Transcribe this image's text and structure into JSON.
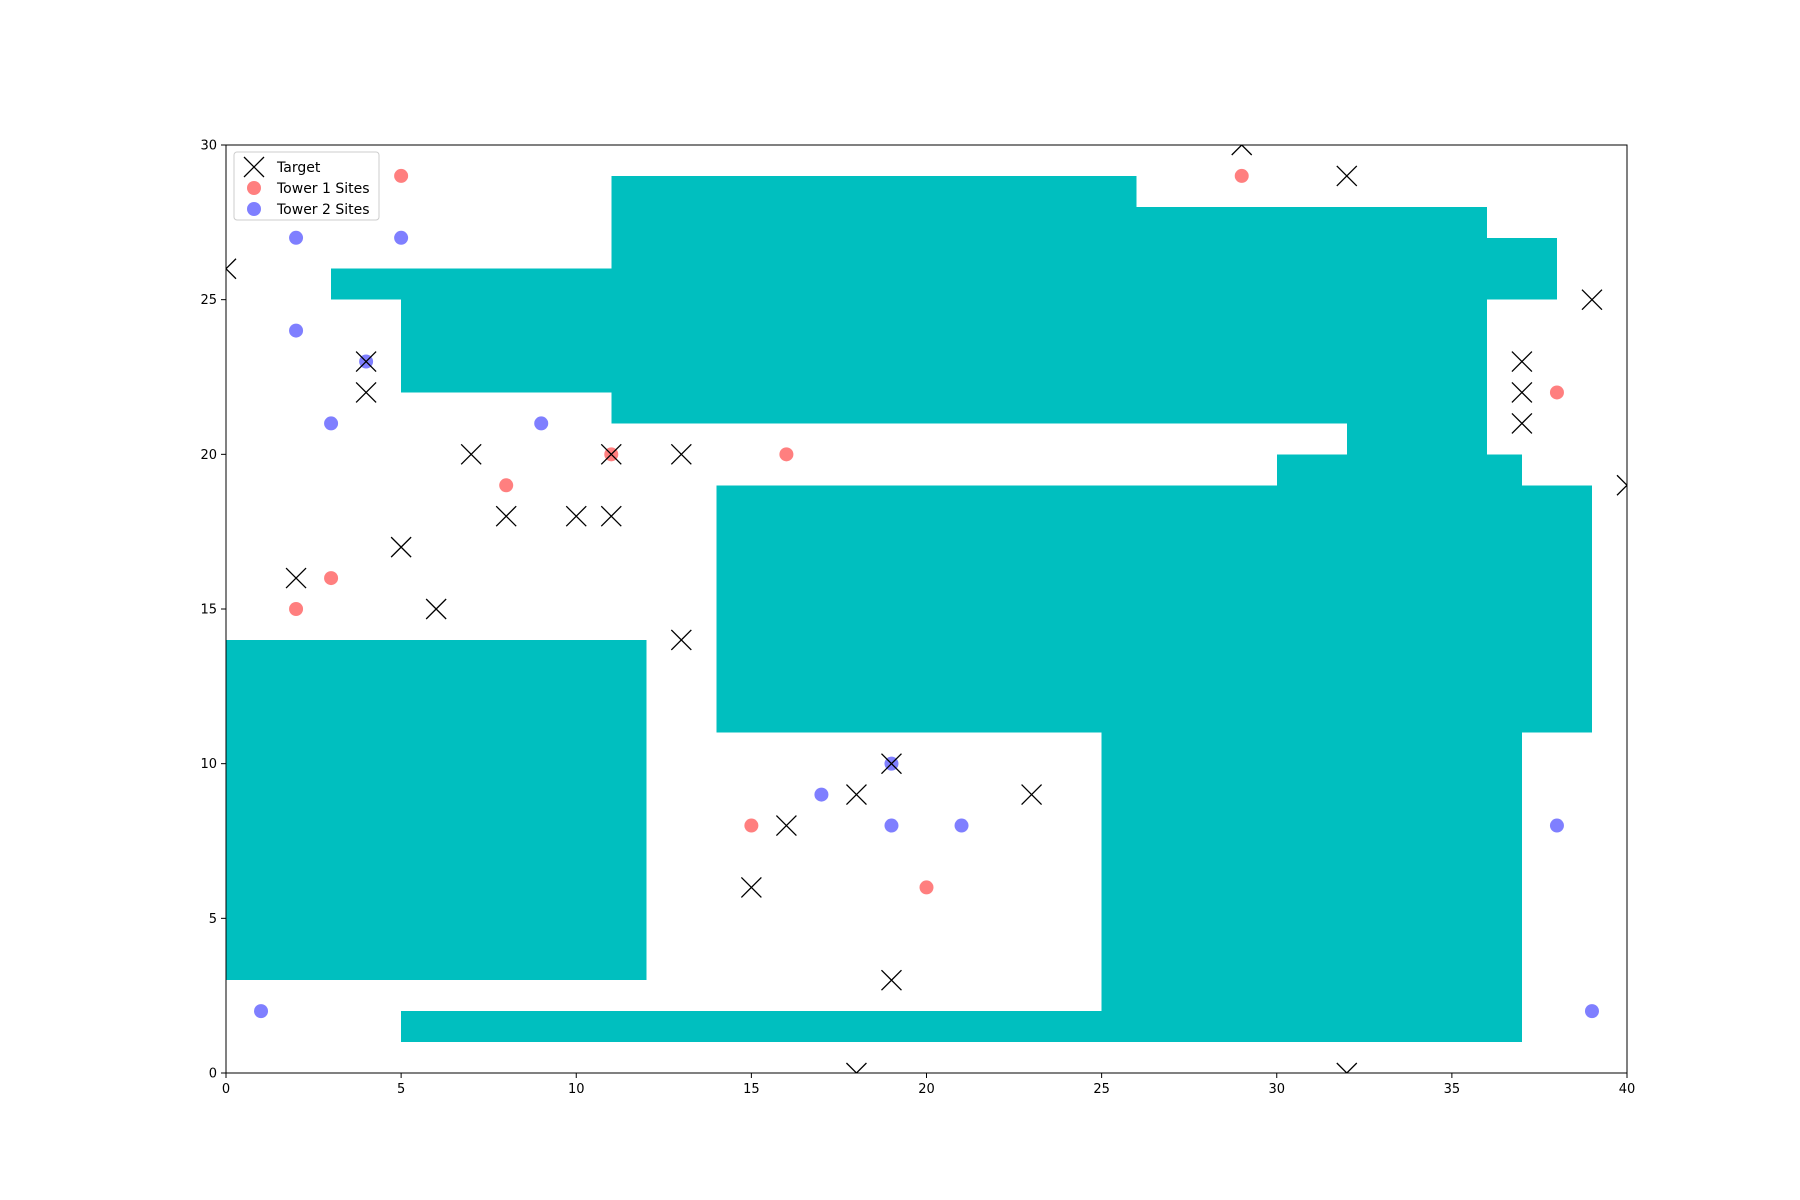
{
  "chart_data": {
    "type": "scatter",
    "title": "",
    "xlabel": "",
    "ylabel": "",
    "xlim": [
      0,
      40
    ],
    "ylim": [
      0,
      30
    ],
    "xticks": [
      "0",
      "5",
      "10",
      "15",
      "20",
      "25",
      "30",
      "35",
      "40"
    ],
    "yticks": [
      "0",
      "5",
      "10",
      "15",
      "20",
      "25",
      "30"
    ],
    "grid": false,
    "legend_position": "top-left",
    "obstacle_color": "#00bfbf",
    "obstacles": [
      {
        "x0": 11,
        "x1": 26,
        "y0": 21,
        "y1": 29
      },
      {
        "x0": 26,
        "x1": 36,
        "y0": 21,
        "y1": 28
      },
      {
        "x0": 36,
        "x1": 38,
        "y0": 25,
        "y1": 27
      },
      {
        "x0": 5,
        "x1": 11,
        "y0": 22,
        "y1": 25
      },
      {
        "x0": 3,
        "x1": 11,
        "y0": 25,
        "y1": 26
      },
      {
        "x0": 32,
        "x1": 36,
        "y0": 20,
        "y1": 21
      },
      {
        "x0": 30,
        "x1": 37,
        "y0": 19,
        "y1": 20
      },
      {
        "x0": 14,
        "x1": 39,
        "y0": 11,
        "y1": 19
      },
      {
        "x0": 25,
        "x1": 37,
        "y0": 1,
        "y1": 11
      },
      {
        "x0": 0,
        "x1": 12,
        "y0": 3,
        "y1": 14
      },
      {
        "x0": 5,
        "x1": 25,
        "y0": 1,
        "y1": 2
      }
    ],
    "series": [
      {
        "name": "Target",
        "marker": "x",
        "color": "#000000",
        "points": [
          [
            0,
            26
          ],
          [
            29,
            30
          ],
          [
            32,
            29
          ],
          [
            39,
            25
          ],
          [
            4,
            23
          ],
          [
            4,
            22
          ],
          [
            37,
            23
          ],
          [
            37,
            22
          ],
          [
            37,
            21
          ],
          [
            7,
            20
          ],
          [
            11,
            20
          ],
          [
            13,
            20
          ],
          [
            40,
            19
          ],
          [
            8,
            18
          ],
          [
            10,
            18
          ],
          [
            11,
            18
          ],
          [
            5,
            17
          ],
          [
            2,
            16
          ],
          [
            6,
            15
          ],
          [
            13,
            14
          ],
          [
            19,
            10
          ],
          [
            18,
            9
          ],
          [
            23,
            9
          ],
          [
            16,
            8
          ],
          [
            15,
            6
          ],
          [
            19,
            3
          ],
          [
            18,
            0
          ],
          [
            32,
            0
          ]
        ]
      },
      {
        "name": "Tower 1 Sites",
        "marker": "o",
        "color": "#ff0000",
        "points": [
          [
            5,
            29
          ],
          [
            29,
            29
          ],
          [
            38,
            22
          ],
          [
            11,
            20
          ],
          [
            16,
            20
          ],
          [
            8,
            19
          ],
          [
            3,
            16
          ],
          [
            2,
            15
          ],
          [
            15,
            8
          ],
          [
            20,
            6
          ]
        ]
      },
      {
        "name": "Tower 2 Sites",
        "marker": "o",
        "color": "#0000ff",
        "points": [
          [
            2,
            27
          ],
          [
            5,
            27
          ],
          [
            2,
            24
          ],
          [
            4,
            23
          ],
          [
            3,
            21
          ],
          [
            9,
            21
          ],
          [
            19,
            10
          ],
          [
            17,
            9
          ],
          [
            19,
            8
          ],
          [
            21,
            8
          ],
          [
            38,
            8
          ],
          [
            1,
            2
          ],
          [
            39,
            2
          ]
        ]
      }
    ]
  }
}
